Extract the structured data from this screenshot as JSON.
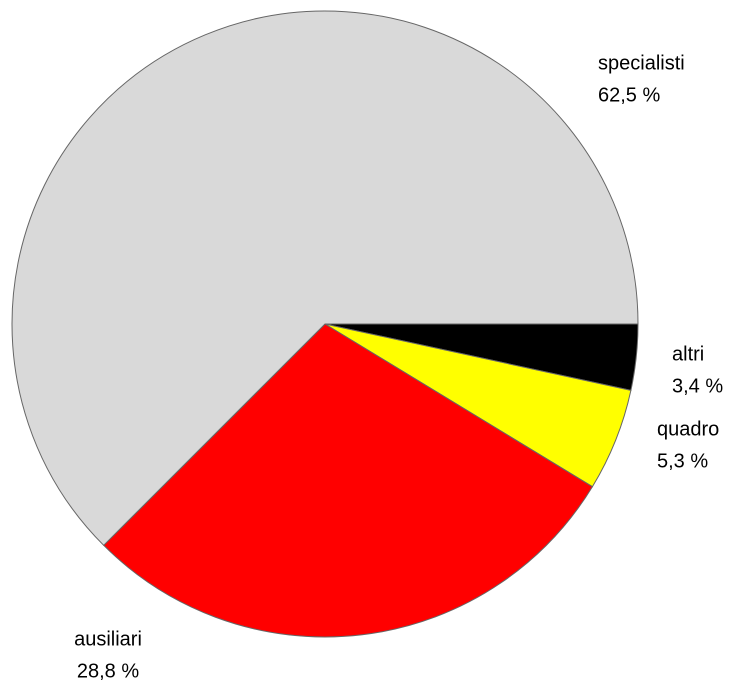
{
  "chart_data": {
    "type": "pie",
    "categories": [
      "altri",
      "quadro",
      "ausiliari",
      "specialisti"
    ],
    "values": [
      3.4,
      5.3,
      28.8,
      62.5
    ],
    "value_labels": [
      "3,4 %",
      "5,3 %",
      "28,8 %",
      "62,5 %"
    ],
    "colors": [
      "#000000",
      "#ffff00",
      "#ff0000",
      "#d9d9d9"
    ]
  }
}
